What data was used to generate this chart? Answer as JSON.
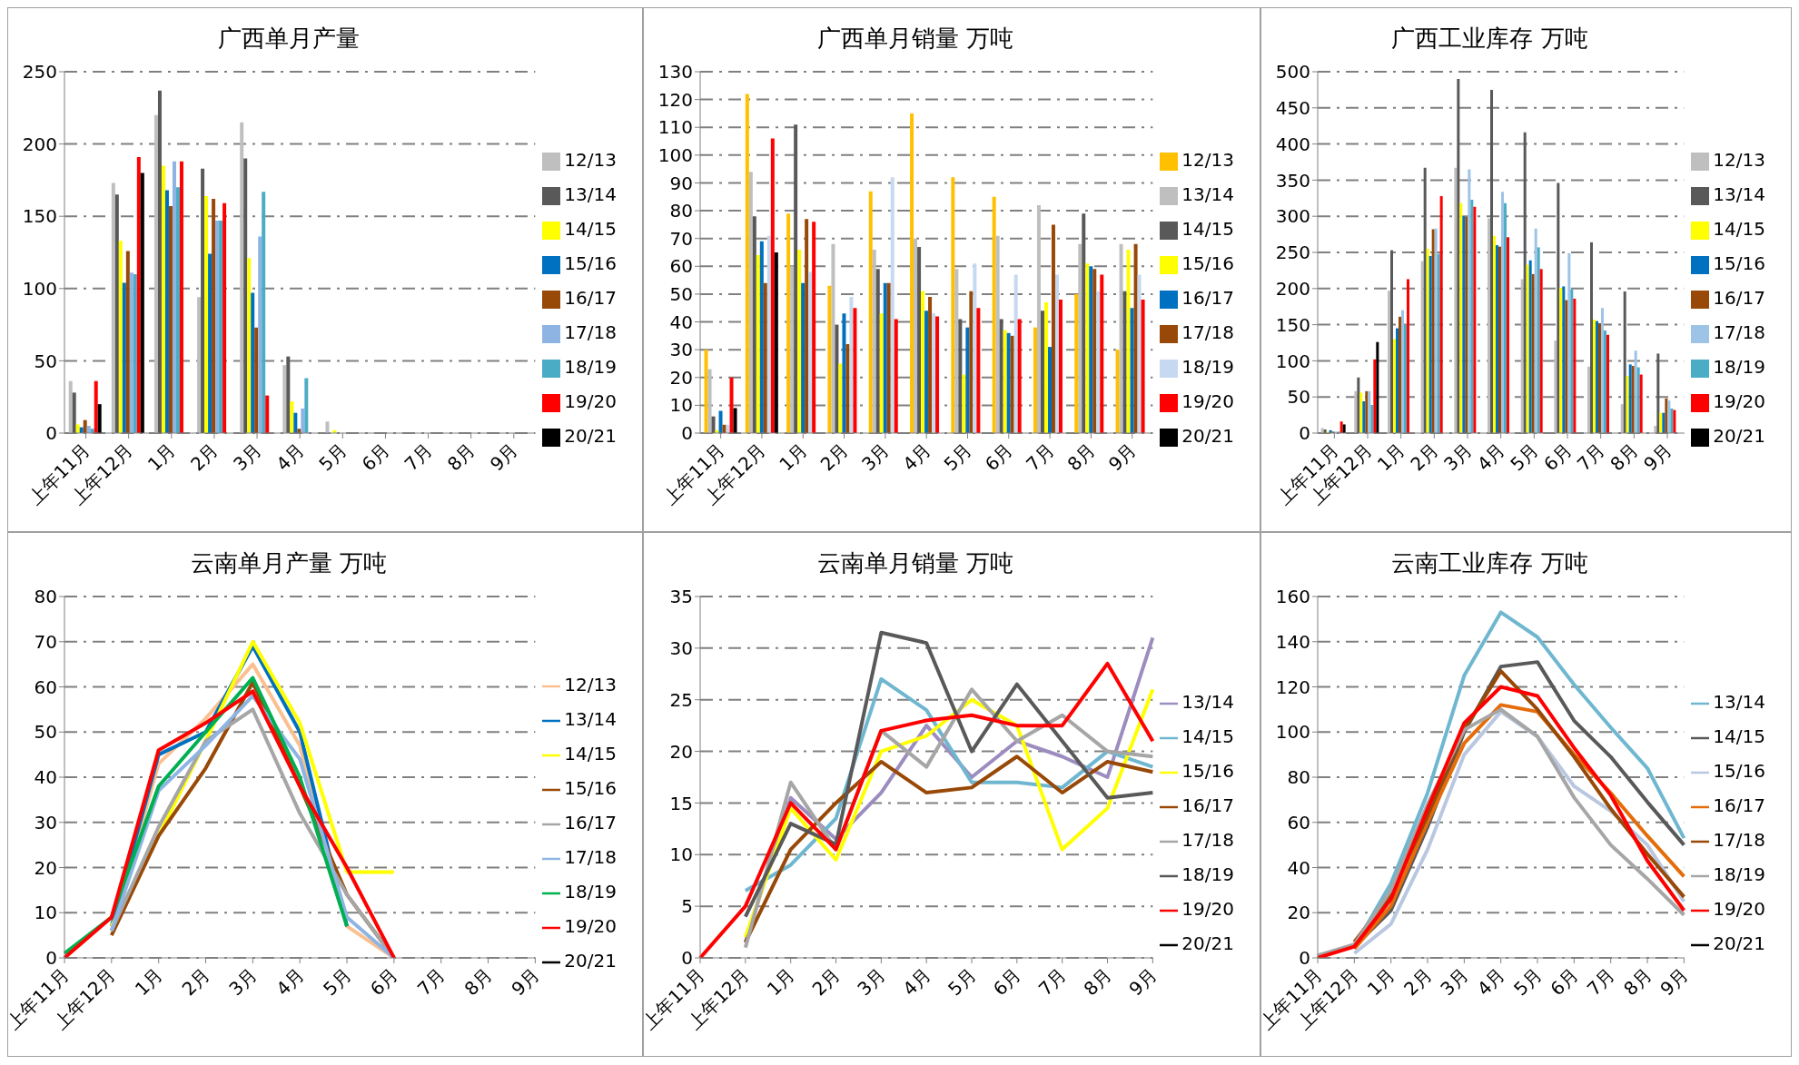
{
  "chart_data": [
    {
      "type": "bar",
      "title": "广西单月产量",
      "categories": [
        "上年11月",
        "上年12月",
        "1月",
        "2月",
        "3月",
        "4月",
        "5月",
        "6月",
        "7月",
        "8月",
        "9月"
      ],
      "ylim": [
        0,
        250
      ],
      "yticks": [
        0,
        50,
        100,
        150,
        200,
        250
      ],
      "grid": "y",
      "legend": "right",
      "series": [
        {
          "name": "12/13",
          "color": "#bfbfbf",
          "values": [
            36,
            173,
            220,
            94,
            215,
            47,
            8,
            null,
            null,
            null,
            null
          ]
        },
        {
          "name": "13/14",
          "color": "#595959",
          "values": [
            28,
            165,
            237,
            183,
            190,
            53,
            null,
            null,
            null,
            null,
            null
          ]
        },
        {
          "name": "14/15",
          "color": "#ffff00",
          "values": [
            6,
            133,
            185,
            164,
            121,
            22,
            2,
            null,
            null,
            null,
            null
          ]
        },
        {
          "name": "15/16",
          "color": "#0070c0",
          "values": [
            4,
            104,
            168,
            124,
            97,
            14,
            null,
            null,
            null,
            null,
            null
          ]
        },
        {
          "name": "16/17",
          "color": "#984807",
          "values": [
            9,
            126,
            157,
            162,
            73,
            3,
            null,
            null,
            null,
            null,
            null
          ]
        },
        {
          "name": "17/18",
          "color": "#8eb4e3",
          "values": [
            5,
            111,
            188,
            147,
            136,
            17,
            null,
            null,
            null,
            null,
            null
          ]
        },
        {
          "name": "18/19",
          "color": "#4bacc6",
          "values": [
            3,
            110,
            170,
            147,
            167,
            38,
            null,
            null,
            null,
            null,
            null
          ]
        },
        {
          "name": "19/20",
          "color": "#ff0000",
          "values": [
            36,
            191,
            188,
            159,
            26,
            null,
            null,
            null,
            null,
            null,
            null
          ]
        },
        {
          "name": "20/21",
          "color": "#000000",
          "values": [
            20,
            180,
            null,
            null,
            null,
            null,
            null,
            null,
            null,
            null,
            null
          ]
        }
      ]
    },
    {
      "type": "bar",
      "title": "广西单月销量 万吨",
      "categories": [
        "上年11月",
        "上年12月",
        "1月",
        "2月",
        "3月",
        "4月",
        "5月",
        "6月",
        "7月",
        "8月",
        "9月"
      ],
      "ylim": [
        0,
        130
      ],
      "yticks": [
        0,
        10,
        20,
        30,
        40,
        50,
        60,
        70,
        80,
        90,
        100,
        110,
        120,
        130
      ],
      "grid": "y",
      "legend": "right",
      "series": [
        {
          "name": "12/13",
          "color": "#ffc000",
          "values": [
            30,
            122,
            79,
            53,
            87,
            115,
            92,
            85,
            38,
            50,
            30
          ]
        },
        {
          "name": "13/14",
          "color": "#bfbfbf",
          "values": [
            23,
            94,
            60,
            68,
            66,
            70,
            59,
            71,
            82,
            68,
            68
          ]
        },
        {
          "name": "14/15",
          "color": "#595959",
          "values": [
            6,
            78,
            111,
            39,
            59,
            67,
            41,
            41,
            44,
            79,
            51
          ]
        },
        {
          "name": "15/16",
          "color": "#ffff00",
          "values": [
            1,
            64,
            66,
            25,
            43,
            51,
            21,
            37,
            47,
            61,
            66
          ]
        },
        {
          "name": "16/17",
          "color": "#0070c0",
          "values": [
            8,
            69,
            54,
            43,
            54,
            44,
            38,
            36,
            31,
            60,
            45
          ]
        },
        {
          "name": "17/18",
          "color": "#984807",
          "values": [
            3,
            54,
            77,
            32,
            54,
            49,
            51,
            35,
            75,
            59,
            68
          ]
        },
        {
          "name": "18/19",
          "color": "#c6d9f1",
          "values": [
            3,
            71,
            58,
            49,
            92,
            43,
            61,
            57,
            57,
            51,
            57
          ]
        },
        {
          "name": "19/20",
          "color": "#ff0000",
          "values": [
            20,
            106,
            76,
            45,
            41,
            42,
            45,
            41,
            48,
            57,
            48
          ]
        },
        {
          "name": "20/21",
          "color": "#000000",
          "values": [
            9,
            65,
            null,
            null,
            null,
            null,
            null,
            null,
            null,
            null,
            null
          ]
        }
      ]
    },
    {
      "type": "bar",
      "title": "广西工业库存 万吨",
      "categories": [
        "上年11月",
        "上年12月",
        "1月",
        "2月",
        "3月",
        "4月",
        "5月",
        "6月",
        "7月",
        "8月",
        "9月"
      ],
      "ylim": [
        0,
        500
      ],
      "yticks": [
        0,
        50,
        100,
        150,
        200,
        250,
        300,
        350,
        400,
        450,
        500
      ],
      "grid": "y",
      "legend": "right",
      "series": [
        {
          "name": "12/13",
          "color": "#bfbfbf",
          "values": [
            7,
            58,
            197,
            238,
            367,
            297,
            213,
            128,
            92,
            40,
            10
          ]
        },
        {
          "name": "13/14",
          "color": "#595959",
          "values": [
            5,
            77,
            253,
            367,
            490,
            475,
            416,
            346,
            264,
            196,
            110
          ]
        },
        {
          "name": "14/15",
          "color": "#ffff00",
          "values": [
            2,
            56,
            130,
            255,
            318,
            273,
            233,
            201,
            157,
            79,
            28
          ]
        },
        {
          "name": "15/16",
          "color": "#0070c0",
          "values": [
            4,
            44,
            145,
            245,
            300,
            260,
            239,
            203,
            155,
            95,
            28
          ]
        },
        {
          "name": "16/17",
          "color": "#984807",
          "values": [
            2,
            58,
            161,
            282,
            299,
            258,
            220,
            184,
            152,
            93,
            48
          ]
        },
        {
          "name": "17/18",
          "color": "#9dc3e6",
          "values": [
            2,
            58,
            170,
            283,
            365,
            334,
            283,
            249,
            173,
            114,
            45
          ]
        },
        {
          "name": "18/19",
          "color": "#4bacc6",
          "values": [
            2,
            39,
            150,
            248,
            323,
            318,
            257,
            199,
            142,
            91,
            34
          ]
        },
        {
          "name": "19/20",
          "color": "#ff0000",
          "values": [
            16,
            102,
            213,
            328,
            313,
            271,
            227,
            186,
            136,
            81,
            32
          ]
        },
        {
          "name": "20/21",
          "color": "#000000",
          "values": [
            12,
            126,
            null,
            null,
            null,
            null,
            null,
            null,
            null,
            null,
            null
          ]
        }
      ]
    },
    {
      "type": "line",
      "title": "云南单月产量 万吨",
      "categories": [
        "上年11月",
        "上年12月",
        "1月",
        "2月",
        "3月",
        "4月",
        "5月",
        "6月",
        "7月",
        "8月",
        "9月"
      ],
      "ylim": [
        0,
        80
      ],
      "yticks": [
        0,
        10,
        20,
        30,
        40,
        50,
        60,
        70,
        80
      ],
      "grid": "y",
      "legend": "right",
      "marker": "none",
      "series": [
        {
          "name": "12/13",
          "color": "#fac090",
          "values": [
            null,
            6,
            43,
            53,
            65,
            47,
            7,
            0,
            null,
            null,
            null
          ]
        },
        {
          "name": "13/14",
          "color": "#0070c0",
          "values": [
            null,
            7,
            45,
            50,
            69,
            50,
            7,
            null,
            null,
            null,
            null
          ]
        },
        {
          "name": "14/15",
          "color": "#ffff00",
          "values": [
            null,
            7,
            27,
            48,
            70,
            52,
            19,
            19,
            null,
            null,
            null
          ]
        },
        {
          "name": "15/16",
          "color": "#984807",
          "values": [
            null,
            5,
            27,
            42,
            61,
            38,
            14,
            0,
            null,
            null,
            null
          ]
        },
        {
          "name": "16/17",
          "color": "#a6a6a6",
          "values": [
            null,
            6,
            29,
            48,
            55,
            32,
            14,
            0,
            null,
            null,
            null
          ]
        },
        {
          "name": "17/18",
          "color": "#8eb4e3",
          "values": [
            null,
            6,
            37,
            47,
            58,
            44,
            9,
            0,
            null,
            null,
            null
          ]
        },
        {
          "name": "18/19",
          "color": "#00b050",
          "values": [
            1,
            9,
            38,
            50,
            62,
            40,
            7,
            null,
            null,
            null,
            null
          ]
        },
        {
          "name": "19/20",
          "color": "#ff0000",
          "values": [
            0,
            9,
            46,
            52,
            59,
            38,
            20,
            0,
            null,
            null,
            null
          ]
        },
        {
          "name": "20/21",
          "color": "#000000",
          "values": [
            null,
            null,
            null,
            null,
            null,
            null,
            null,
            null,
            null,
            null,
            null
          ]
        }
      ]
    },
    {
      "type": "line",
      "title": "云南单月销量 万吨",
      "categories": [
        "上年11月",
        "上年12月",
        "1月",
        "2月",
        "3月",
        "4月",
        "5月",
        "6月",
        "7月",
        "8月",
        "9月"
      ],
      "ylim": [
        0,
        35
      ],
      "yticks": [
        0,
        5,
        10,
        15,
        20,
        25,
        30,
        35
      ],
      "grid": "y",
      "legend": "right",
      "marker": "none",
      "series": [
        {
          "name": "13/14",
          "color": "#9c8cbf",
          "values": [
            null,
            1.5,
            15.5,
            11.5,
            16,
            22.5,
            17.5,
            21,
            19.5,
            17.5,
            31
          ]
        },
        {
          "name": "14/15",
          "color": "#6fb7d0",
          "values": [
            null,
            6.5,
            9,
            13.5,
            27,
            24,
            17,
            17,
            16.5,
            20,
            18.5
          ]
        },
        {
          "name": "15/16",
          "color": "#ffff00",
          "values": [
            null,
            2,
            14.5,
            9.5,
            20,
            21.5,
            25,
            22.5,
            10.5,
            14.5,
            26
          ]
        },
        {
          "name": "16/17",
          "color": "#984807",
          "values": [
            null,
            1.5,
            10.5,
            15,
            19,
            16,
            16.5,
            19.5,
            16,
            19,
            18
          ]
        },
        {
          "name": "17/18",
          "color": "#a6a6a6",
          "values": [
            null,
            1,
            17,
            10.5,
            22,
            18.5,
            26,
            21,
            23.5,
            20,
            19.5
          ]
        },
        {
          "name": "18/19",
          "color": "#595959",
          "values": [
            null,
            4,
            13,
            11,
            31.5,
            30.5,
            20,
            26.5,
            21,
            15.5,
            16
          ]
        },
        {
          "name": "19/20",
          "color": "#ff0000",
          "values": [
            0,
            5,
            15,
            10.5,
            22,
            23,
            23.5,
            22.5,
            22.5,
            28.5,
            21
          ]
        },
        {
          "name": "20/21",
          "color": "#000000",
          "values": [
            null,
            null,
            null,
            null,
            null,
            null,
            null,
            null,
            null,
            null,
            null
          ]
        }
      ]
    },
    {
      "type": "line",
      "title": "云南工业库存 万吨",
      "categories": [
        "上年11月",
        "上年12月",
        "1月",
        "2月",
        "3月",
        "4月",
        "5月",
        "6月",
        "7月",
        "8月",
        "9月"
      ],
      "ylim": [
        0,
        160
      ],
      "yticks": [
        0,
        20,
        40,
        60,
        80,
        100,
        120,
        140,
        160
      ],
      "grid": "y",
      "legend": "right",
      "marker": "none",
      "series": [
        {
          "name": "13/14",
          "color": "#6fb7d0",
          "values": [
            1,
            5,
            33,
            73,
            125,
            153,
            142,
            121,
            102,
            84,
            53
          ]
        },
        {
          "name": "14/15",
          "color": "#595959",
          "values": [
            null,
            5,
            21,
            58,
            100,
            129,
            131,
            105,
            89,
            69,
            50
          ]
        },
        {
          "name": "15/16",
          "color": "#b9c7e0",
          "values": [
            null,
            2,
            15,
            48,
            90,
            109,
            98,
            76,
            65,
            50,
            25
          ]
        },
        {
          "name": "16/17",
          "color": "#e46c0a",
          "values": [
            null,
            4,
            23,
            60,
            95,
            112,
            109,
            90,
            73,
            54,
            36
          ]
        },
        {
          "name": "17/18",
          "color": "#984807",
          "values": [
            null,
            7,
            28,
            63,
            101,
            127,
            110,
            89,
            66,
            46,
            27
          ]
        },
        {
          "name": "18/19",
          "color": "#a6a6a6",
          "values": [
            1,
            6,
            30,
            68,
            101,
            110,
            98,
            71,
            50,
            35,
            19
          ]
        },
        {
          "name": "19/20",
          "color": "#ff0000",
          "values": [
            0,
            5,
            26,
            66,
            104,
            120,
            116,
            93,
            72,
            43,
            21
          ]
        },
        {
          "name": "20/21",
          "color": "#000000",
          "values": [
            null,
            null,
            null,
            null,
            null,
            null,
            null,
            null,
            null,
            null,
            null
          ]
        }
      ]
    }
  ]
}
